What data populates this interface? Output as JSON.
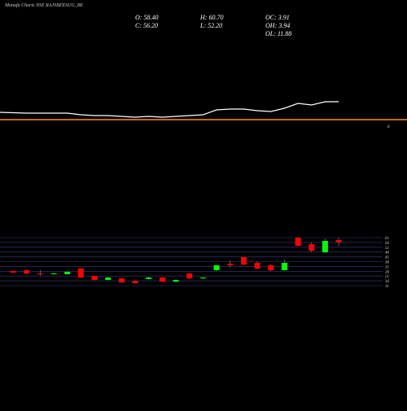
{
  "chart_data": [
    {
      "type": "line",
      "title": "Munafa Charts NSE RAJSBEESUG_BE",
      "values": [
        12.5,
        12,
        12,
        12,
        12,
        11,
        10.5,
        10.5,
        10,
        9.5,
        10,
        9.5,
        10,
        10.5,
        11,
        14,
        14.5,
        14.5,
        13.5,
        13,
        15,
        18,
        17,
        19,
        19
      ],
      "color": "#ffffff",
      "level": 8,
      "level_color": "#ff8c1a",
      "ylim": [
        8,
        28
      ],
      "yticks": [
        8
      ]
    },
    {
      "type": "candlestick",
      "stats": [
        "O: 58.40",
        "H: 60.70",
        "OC: 3.91",
        "C: 56.20",
        "L: 52.20",
        "OH: 3.94",
        "OL: 11.88"
      ],
      "open": [
        26.3,
        27.1,
        23.7,
        22.9,
        22.9,
        28.8,
        21.2,
        17,
        18.6,
        16.1,
        17.8,
        19.5,
        15.2,
        23.7,
        18.6,
        27.1,
        33.9,
        40.7,
        34.7,
        32.2,
        27.1,
        61,
        54.2,
        45.7,
        58.4
      ],
      "high": [
        26.5,
        28,
        27.1,
        24.5,
        25.8,
        29.2,
        21.5,
        20.3,
        19,
        16.5,
        20,
        19.8,
        17.6,
        24.1,
        20,
        32.5,
        37.5,
        41,
        36.3,
        33.5,
        38,
        61.5,
        56,
        60,
        60.7
      ],
      "low": [
        24.4,
        23,
        21.2,
        22.5,
        22.5,
        19.3,
        16.5,
        16.5,
        14,
        13.1,
        17.4,
        14.8,
        14.4,
        17.8,
        18.2,
        26,
        30,
        32.5,
        28,
        26,
        26.5,
        52,
        46,
        45,
        52.2
      ],
      "close": [
        24.6,
        23.7,
        22.9,
        23.7,
        25.4,
        19.5,
        17,
        19.5,
        14.3,
        13.5,
        19.5,
        15.2,
        16.9,
        18.6,
        19.5,
        32.2,
        32.2,
        33,
        28.8,
        27.1,
        34.7,
        52.5,
        47.4,
        57.6,
        56.2
      ],
      "up_color": "#00ff00",
      "down_color": "#ff0000",
      "grid_color": "#3a3a80",
      "ylim": [
        11,
        61
      ],
      "yticks": [
        61,
        56,
        51,
        46,
        41,
        36,
        31,
        26,
        21,
        16,
        11
      ],
      "grid": true
    }
  ]
}
